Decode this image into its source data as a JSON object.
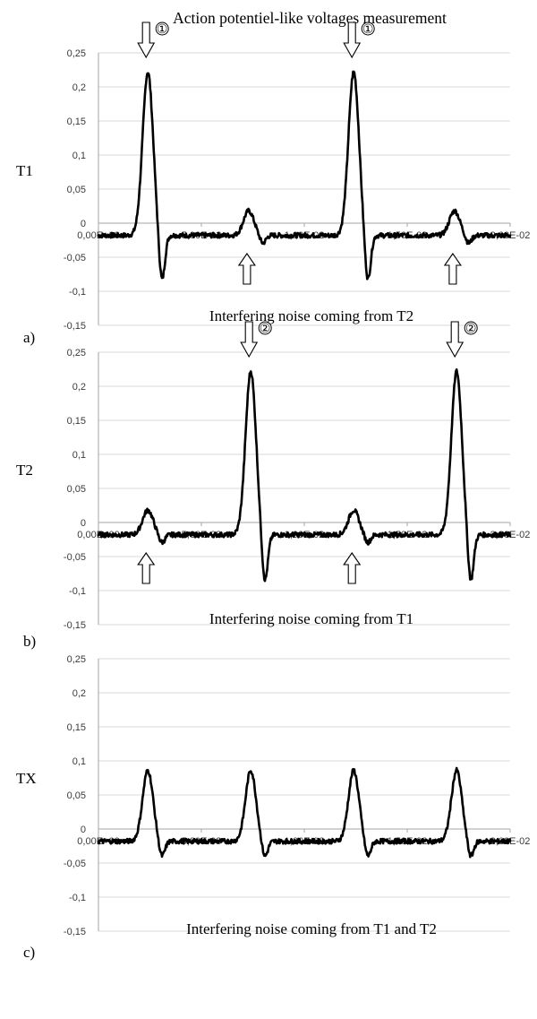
{
  "figure": {
    "title": "Action potentiel-like voltages measurement"
  },
  "chart_data": [
    {
      "type": "line",
      "panel": "a)",
      "ylabel": "T1",
      "annotation": "Interfering noise coming from T2",
      "ylim": [
        -0.15,
        0.25
      ],
      "xlim": [
        0,
        0.02
      ],
      "yticks": [
        "0,25",
        "0,2",
        "0,15",
        "0,1",
        "0,05",
        "0",
        "-0,05",
        "-0,1",
        "-0,15"
      ],
      "xticks": [
        "0,00E+00",
        "5,00E-03",
        "1,00E-02",
        "1,50E-02",
        "2,00E-02"
      ],
      "grid": true,
      "baseline": -0.018,
      "pulses": [
        {
          "t": 0.0024,
          "peak": 0.222,
          "trough": -0.088
        },
        {
          "t": 0.0124,
          "peak": 0.222,
          "trough": -0.088
        },
        {
          "t": 0.0073,
          "peak": 0.018,
          "trough": -0.03
        },
        {
          "t": 0.0173,
          "peak": 0.018,
          "trough": -0.03
        }
      ],
      "markers_down": [
        {
          "x": 0.0024,
          "label": "①"
        },
        {
          "x": 0.0124,
          "label": "①"
        }
      ],
      "markers_up": [
        {
          "x": 0.0073
        },
        {
          "x": 0.0173
        }
      ]
    },
    {
      "type": "line",
      "panel": "b)",
      "ylabel": "T2",
      "annotation": "Interfering noise coming from T1",
      "ylim": [
        -0.15,
        0.25
      ],
      "xlim": [
        0,
        0.02
      ],
      "yticks": [
        "0,25",
        "0,2",
        "0,15",
        "0,1",
        "0,05",
        "0",
        "-0,05",
        "-0,1",
        "-0,15"
      ],
      "xticks": [
        "0,00E+00",
        "5,00E-03",
        "1,00E-02",
        "1,50E-02",
        "2,00E-02"
      ],
      "grid": true,
      "baseline": -0.018,
      "pulses": [
        {
          "t": 0.0074,
          "peak": 0.222,
          "trough": -0.09
        },
        {
          "t": 0.0174,
          "peak": 0.222,
          "trough": -0.09
        },
        {
          "t": 0.0024,
          "peak": 0.018,
          "trough": -0.03
        },
        {
          "t": 0.0124,
          "peak": 0.018,
          "trough": -0.03
        }
      ],
      "markers_down": [
        {
          "x": 0.0074,
          "label": "②"
        },
        {
          "x": 0.0174,
          "label": "②"
        }
      ],
      "markers_up": [
        {
          "x": 0.0024
        },
        {
          "x": 0.0124
        }
      ]
    },
    {
      "type": "line",
      "panel": "c)",
      "ylabel": "TX",
      "annotation": "Interfering noise coming from T1 and T2",
      "ylim": [
        -0.15,
        0.25
      ],
      "xlim": [
        0,
        0.02
      ],
      "yticks": [
        "0,25",
        "0,2",
        "0,15",
        "0,1",
        "0,05",
        "0",
        "-0,05",
        "-0,1",
        "-0,15"
      ],
      "xticks": [
        "0,00E+00",
        "5,00E-03",
        "1,00E-02",
        "1,50E-02",
        "2,00E-02"
      ],
      "grid": true,
      "baseline": -0.018,
      "pulses": [
        {
          "t": 0.0024,
          "peak": 0.086,
          "trough": -0.042
        },
        {
          "t": 0.0074,
          "peak": 0.086,
          "trough": -0.042
        },
        {
          "t": 0.0124,
          "peak": 0.086,
          "trough": -0.042
        },
        {
          "t": 0.0174,
          "peak": 0.086,
          "trough": -0.042
        }
      ],
      "markers_down": [],
      "markers_up": []
    }
  ]
}
